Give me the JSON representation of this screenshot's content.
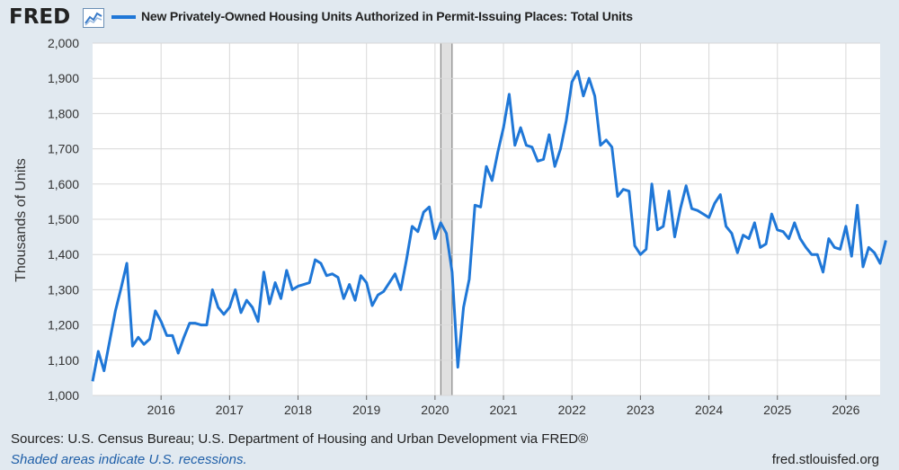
{
  "header": {
    "logo_text": "FRED",
    "legend_label": "New Privately-Owned Housing Units Authorized in Permit-Issuing Places: Total Units"
  },
  "colors": {
    "line": "#1f77d7",
    "plot_bg": "#ffffff",
    "page_bg": "#e1e9f0",
    "recession": "#e0e0e0"
  },
  "icons": {
    "logo_chart": "chart-trend-icon"
  },
  "footer": {
    "sources": "Sources: U.S. Census Bureau; U.S. Department of Housing and Urban Development via FRED®",
    "shaded": "Shaded areas indicate U.S. recessions.",
    "url": "fred.stlouisfed.org"
  },
  "chart_data": {
    "type": "line",
    "title": "",
    "xlabel": "",
    "ylabel": "Thousands of Units",
    "ylim": [
      1000,
      2000
    ],
    "yticks": [
      1000,
      1100,
      1200,
      1300,
      1400,
      1500,
      1600,
      1700,
      1800,
      1900,
      2000
    ],
    "ytick_labels": [
      "1,000",
      "1,100",
      "1,200",
      "1,300",
      "1,400",
      "1,500",
      "1,600",
      "1,700",
      "1,800",
      "1,900",
      "2,000"
    ],
    "xlim": [
      "2015-01",
      "2026-07"
    ],
    "xtick_labels": [
      "2016",
      "2017",
      "2018",
      "2019",
      "2020",
      "2021",
      "2022",
      "2023",
      "2024",
      "2025",
      "2026"
    ],
    "grid": true,
    "recessions": [
      [
        "2020-02",
        "2020-04"
      ]
    ],
    "series": [
      {
        "name": "New Privately-Owned Housing Units Authorized in Permit-Issuing Places: Total Units",
        "start": "2015-01",
        "values": [
          1040,
          1125,
          1070,
          1155,
          1240,
          1305,
          1375,
          1140,
          1165,
          1145,
          1160,
          1240,
          1210,
          1170,
          1170,
          1120,
          1165,
          1205,
          1205,
          1200,
          1200,
          1300,
          1250,
          1230,
          1250,
          1300,
          1235,
          1270,
          1250,
          1210,
          1350,
          1260,
          1320,
          1275,
          1355,
          1300,
          1310,
          1315,
          1320,
          1385,
          1375,
          1340,
          1345,
          1335,
          1275,
          1315,
          1270,
          1340,
          1320,
          1255,
          1285,
          1295,
          1320,
          1345,
          1300,
          1385,
          1480,
          1465,
          1520,
          1535,
          1445,
          1490,
          1460,
          1350,
          1080,
          1250,
          1330,
          1540,
          1535,
          1650,
          1610,
          1690,
          1760,
          1855,
          1710,
          1760,
          1710,
          1705,
          1665,
          1670,
          1740,
          1650,
          1700,
          1780,
          1890,
          1920,
          1850,
          1900,
          1850,
          1710,
          1725,
          1705,
          1565,
          1585,
          1580,
          1425,
          1400,
          1415,
          1600,
          1470,
          1480,
          1580,
          1450,
          1530,
          1595,
          1530,
          1525,
          1515,
          1505,
          1545,
          1570,
          1480,
          1460,
          1405,
          1455,
          1445,
          1490,
          1420,
          1430,
          1515,
          1470,
          1465,
          1445,
          1490,
          1445,
          1420,
          1400,
          1400,
          1350,
          1445,
          1420,
          1415,
          1480,
          1395,
          1540,
          1365,
          1420,
          1405,
          1375,
          1440
        ]
      }
    ]
  }
}
